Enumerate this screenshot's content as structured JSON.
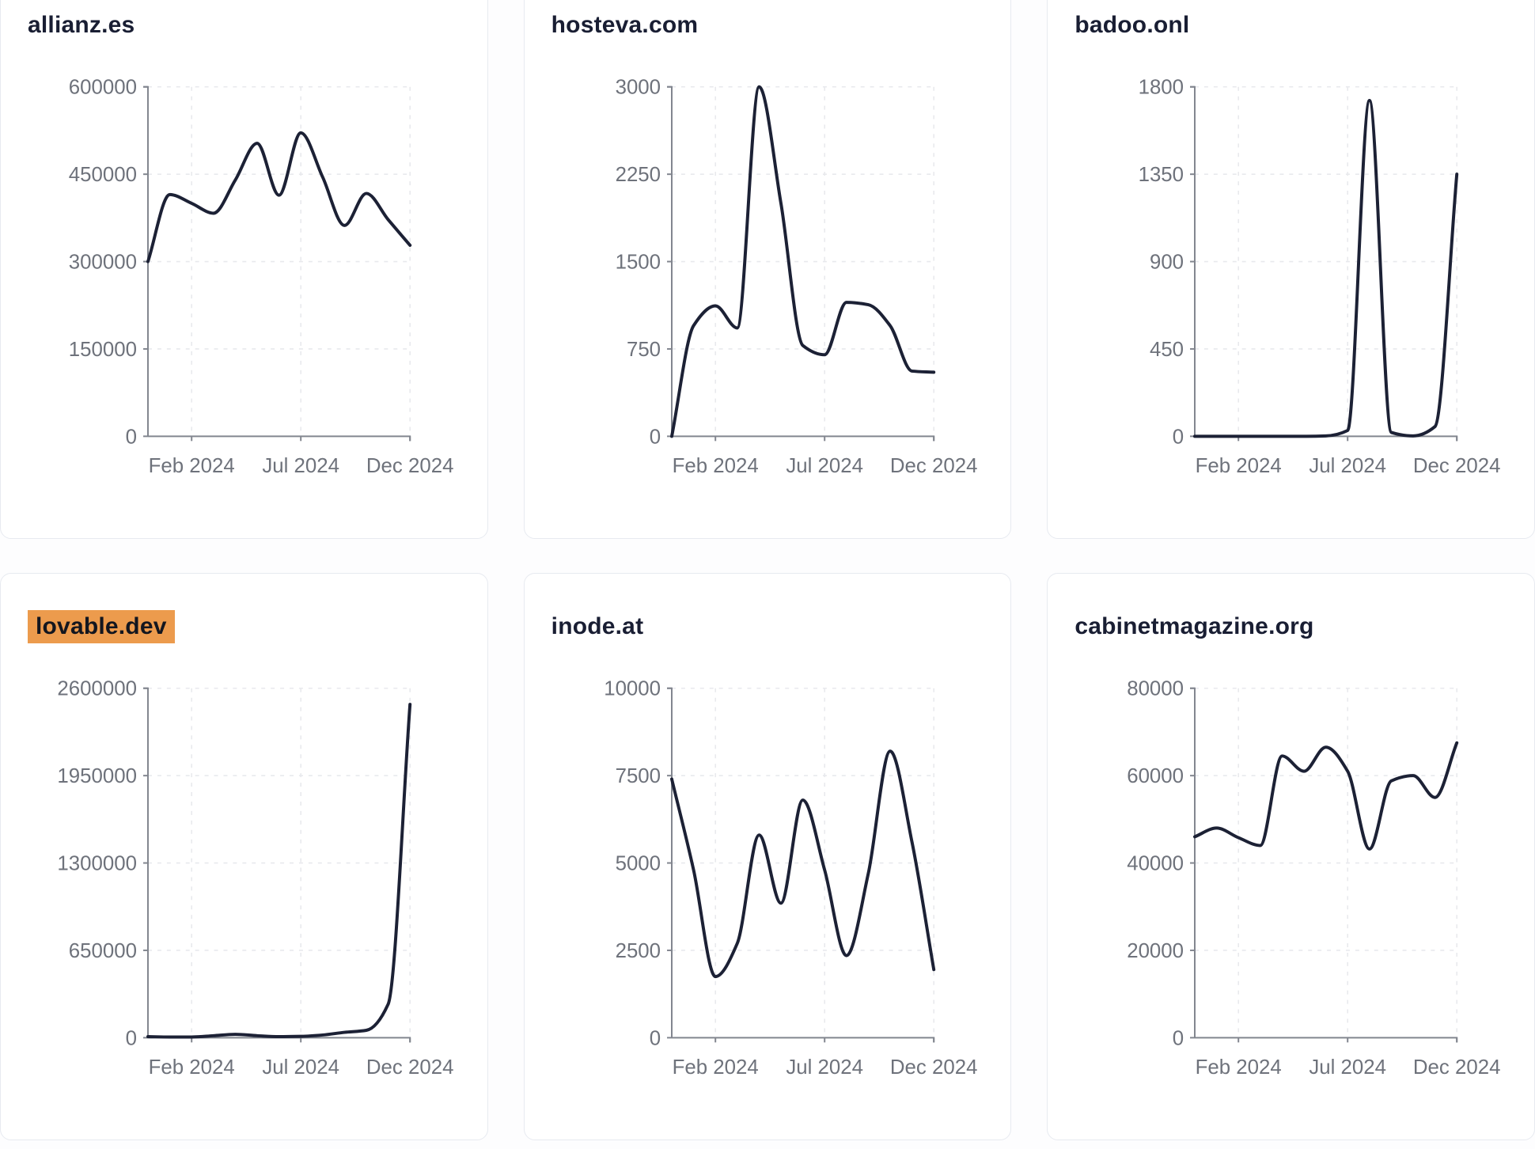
{
  "page": {
    "background": "#fdfdfe",
    "months": [
      "Dec 2023",
      "Jan 2024",
      "Feb 2024",
      "Mar 2024",
      "Apr 2024",
      "May 2024",
      "Jun 2024",
      "Jul 2024",
      "Aug 2024",
      "Sep 2024",
      "Oct 2024",
      "Nov 2024",
      "Dec 2024"
    ],
    "x_tick_month_indices": [
      2,
      7,
      12
    ],
    "x_tick_labels": [
      "Feb 2024",
      "Jul 2024",
      "Dec 2024"
    ]
  },
  "style": {
    "line_color": "#1c2135",
    "axis_color": "#82868f",
    "tick_label_color": "#6e727b",
    "grid_color": "#e8e9ed",
    "title_color": "#191e33",
    "highlight_color": "#ec9b4d",
    "card_border": "#e7eaf0",
    "card_bg": "#ffffff"
  },
  "chart_data": [
    {
      "type": "line",
      "title": "allianz.es",
      "highlighted": false,
      "x": [
        "Dec 2023",
        "Jan 2024",
        "Feb 2024",
        "Mar 2024",
        "Apr 2024",
        "May 2024",
        "Jun 2024",
        "Jul 2024",
        "Aug 2024",
        "Sep 2024",
        "Oct 2024",
        "Nov 2024",
        "Dec 2024"
      ],
      "values": [
        300000,
        415000,
        400000,
        383000,
        440000,
        503000,
        414000,
        521000,
        445000,
        362000,
        417000,
        372000,
        328000
      ],
      "y_ticks": [
        0,
        150000,
        300000,
        450000,
        600000
      ],
      "ylim": [
        0,
        600000
      ],
      "xlabel": "",
      "ylabel": "",
      "grid": true,
      "legend": "none"
    },
    {
      "type": "line",
      "title": "hosteva.com",
      "highlighted": false,
      "x": [
        "Dec 2023",
        "Jan 2024",
        "Feb 2024",
        "Mar 2024",
        "Apr 2024",
        "May 2024",
        "Jun 2024",
        "Jul 2024",
        "Aug 2024",
        "Sep 2024",
        "Oct 2024",
        "Nov 2024",
        "Dec 2024"
      ],
      "values": [
        0,
        950,
        1120,
        930,
        3000,
        2000,
        780,
        700,
        1150,
        1130,
        950,
        560,
        550
      ],
      "y_ticks": [
        0,
        750,
        1500,
        2250,
        3000
      ],
      "ylim": [
        0,
        3000
      ],
      "xlabel": "",
      "ylabel": "",
      "grid": true,
      "legend": "none"
    },
    {
      "type": "line",
      "title": "badoo.onl",
      "highlighted": false,
      "x": [
        "Dec 2023",
        "Jan 2024",
        "Feb 2024",
        "Mar 2024",
        "Apr 2024",
        "May 2024",
        "Jun 2024",
        "Jul 2024",
        "Aug 2024",
        "Sep 2024",
        "Oct 2024",
        "Nov 2024",
        "Dec 2024"
      ],
      "values": [
        0,
        0,
        0,
        0,
        0,
        0,
        2,
        30,
        1730,
        20,
        2,
        50,
        1350
      ],
      "y_ticks": [
        0,
        450,
        900,
        1350,
        1800
      ],
      "ylim": [
        0,
        1800
      ],
      "xlabel": "",
      "ylabel": "",
      "grid": true,
      "legend": "none"
    },
    {
      "type": "line",
      "title": "lovable.dev",
      "highlighted": true,
      "x": [
        "Dec 2023",
        "Jan 2024",
        "Feb 2024",
        "Mar 2024",
        "Apr 2024",
        "May 2024",
        "Jun 2024",
        "Jul 2024",
        "Aug 2024",
        "Sep 2024",
        "Oct 2024",
        "Nov 2024",
        "Dec 2024"
      ],
      "values": [
        8000,
        5000,
        5000,
        15000,
        25000,
        15000,
        8000,
        10000,
        20000,
        40000,
        55000,
        250000,
        2480000
      ],
      "y_ticks": [
        0,
        650000,
        1300000,
        1950000,
        2600000
      ],
      "ylim": [
        0,
        2600000
      ],
      "xlabel": "",
      "ylabel": "",
      "grid": true,
      "legend": "none"
    },
    {
      "type": "line",
      "title": "inode.at",
      "highlighted": false,
      "x": [
        "Dec 2023",
        "Jan 2024",
        "Feb 2024",
        "Mar 2024",
        "Apr 2024",
        "May 2024",
        "Jun 2024",
        "Jul 2024",
        "Aug 2024",
        "Sep 2024",
        "Oct 2024",
        "Nov 2024",
        "Dec 2024"
      ],
      "values": [
        7400,
        4800,
        1750,
        2700,
        5800,
        3850,
        6800,
        4800,
        2350,
        4700,
        8200,
        5600,
        1950
      ],
      "y_ticks": [
        0,
        2500,
        5000,
        7500,
        10000
      ],
      "ylim": [
        0,
        10000
      ],
      "xlabel": "",
      "ylabel": "",
      "grid": true,
      "legend": "none"
    },
    {
      "type": "line",
      "title": "cabinetmagazine.org",
      "highlighted": false,
      "x": [
        "Dec 2023",
        "Jan 2024",
        "Feb 2024",
        "Mar 2024",
        "Apr 2024",
        "May 2024",
        "Jun 2024",
        "Jul 2024",
        "Aug 2024",
        "Sep 2024",
        "Oct 2024",
        "Nov 2024",
        "Dec 2024"
      ],
      "values": [
        46000,
        48000,
        45800,
        44000,
        64500,
        61000,
        66500,
        61000,
        43200,
        58800,
        60000,
        55000,
        67500
      ],
      "y_ticks": [
        0,
        20000,
        40000,
        60000,
        80000
      ],
      "ylim": [
        0,
        80000
      ],
      "xlabel": "",
      "ylabel": "",
      "grid": true,
      "legend": "none"
    }
  ]
}
